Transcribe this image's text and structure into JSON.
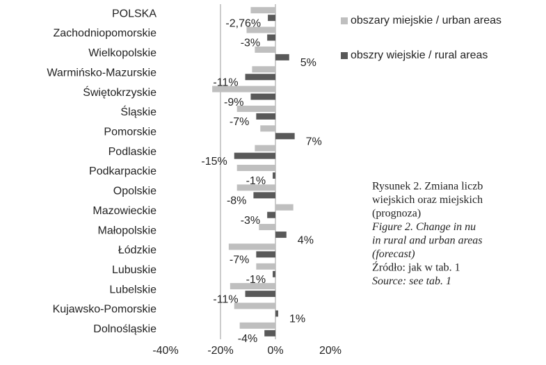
{
  "chart_data": {
    "type": "hbar",
    "categories": [
      "POLSKA",
      "Zachodniopomorskie",
      "Wielkopolskie",
      "Warmińsko-Mazurskie",
      "Świętokrzyskie",
      "Śląskie",
      "Pomorskie",
      "Podlaskie",
      "Podkarpackie",
      "Opolskie",
      "Mazowieckie",
      "Małopolskie",
      "Łódzkie",
      "Lubuskie",
      "Lubelskie",
      "Kujawsko-Pomorskie",
      "Dolnośląskie"
    ],
    "series": [
      {
        "name": "obszary miejskie / urban areas",
        "color": "#bfbfbf",
        "values": [
          -9,
          -10.5,
          -7.5,
          -8.5,
          -23,
          -14,
          -5.5,
          -7.5,
          -14,
          -14,
          6.5,
          -6,
          -17,
          -7,
          -16.5,
          -15,
          -13
        ]
      },
      {
        "name": "obszry wiejskie / rural areas",
        "color": "#595959",
        "values": [
          -2.76,
          -3,
          5,
          -11,
          -9,
          -7,
          7,
          -15,
          -1,
          -8,
          -3,
          4,
          -7,
          -1,
          -11,
          1,
          -4
        ],
        "value_labels": [
          "-2,76%",
          "-3%",
          "5%",
          "-11%",
          "-9%",
          "-7%",
          "7%",
          "-15%",
          "-1%",
          "-8%",
          "-3%",
          "4%",
          "-7%",
          "-1%",
          "-11%",
          "1%",
          "-4%"
        ]
      }
    ],
    "xlim": [
      -40,
      20
    ],
    "xticks": [
      {
        "value": -40,
        "label": "-40%"
      },
      {
        "value": -20,
        "label": "-20%"
      },
      {
        "value": 0,
        "label": "0%"
      },
      {
        "value": 20,
        "label": "20%"
      }
    ],
    "grid": true,
    "legend": "top-right"
  },
  "caption": {
    "lines": [
      "Rysunek 2. Zmiana liczb",
      "wiejskich oraz miejskich",
      "(prognoza)",
      "Figure 2. Change in nu",
      "in rural and urban areas",
      "(forecast)",
      "Źródło: jak w tab. 1",
      "Source: see tab. 1"
    ]
  }
}
